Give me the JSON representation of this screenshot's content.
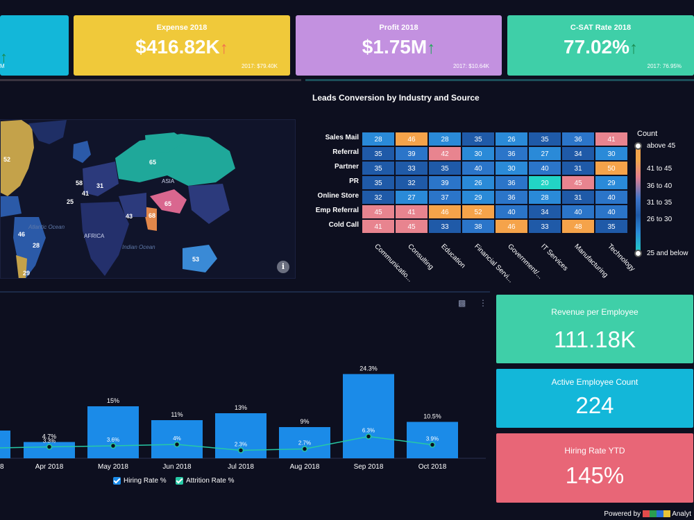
{
  "kpis": [
    {
      "title": "Expense 2018",
      "value": "$416.82K",
      "arrow": "↑",
      "arrow_color": "#f26d4f",
      "prev": "2017: $79.40K",
      "bg": "#f0c93a"
    },
    {
      "title": "Profit 2018",
      "value": "$1.75M",
      "arrow": "↑",
      "arrow_color": "#1fa85a",
      "prev": "2017: $10.64K",
      "bg": "#c391e0"
    },
    {
      "title": "C-SAT Rate 2018",
      "value": "77.02%",
      "arrow": "↑",
      "arrow_color": "#1a8a50",
      "prev": "2017: 76.95%",
      "bg": "#3fcfa8"
    }
  ],
  "left_kpi": {
    "arrow": "↑",
    "prev": "M",
    "bg": "#13b7d9"
  },
  "map": {
    "numbers": [
      "52",
      "65",
      "58",
      "31",
      "25",
      "41",
      "43",
      "65",
      "68",
      "46",
      "28",
      "53",
      "29"
    ],
    "oceans": [
      "Atlantic Ocean",
      "Indian Ocean"
    ],
    "regions": [
      "AFRICA",
      "ASIA"
    ],
    "info_icon": "info-icon"
  },
  "heatmap": {
    "title": "Leads Conversion by Industry and Source",
    "rows": [
      "Sales Mail",
      "Referral",
      "Partner",
      "PR",
      "Online Store",
      "Emp Referral",
      "Cold Call"
    ],
    "columns": [
      "Communicatio...",
      "Consulting",
      "Education",
      "Financial Servi...",
      "Government/...",
      "IT Services",
      "Manufacturing",
      "Technology"
    ],
    "values": [
      [
        28,
        46,
        28,
        35,
        26,
        35,
        36,
        41
      ],
      [
        35,
        39,
        42,
        30,
        36,
        27,
        34,
        30
      ],
      [
        35,
        33,
        35,
        40,
        30,
        40,
        31,
        50
      ],
      [
        35,
        32,
        39,
        26,
        36,
        20,
        45,
        29
      ],
      [
        32,
        27,
        37,
        29,
        36,
        28,
        31,
        40
      ],
      [
        45,
        41,
        46,
        52,
        40,
        34,
        40,
        40
      ],
      [
        41,
        45,
        33,
        38,
        46,
        33,
        48,
        35
      ]
    ],
    "legend_title": "Count",
    "legend_labels": [
      "above 45",
      "41 to 45",
      "36 to 40",
      "31 to 35",
      "26 to 30",
      "25 and below"
    ],
    "colors": {
      "above45": "#f5a34a",
      "41to45": "#e8848f",
      "36to40": "#2b75c9",
      "31to35": "#1f5aa8",
      "26to30": "#2a8ad8",
      "25below": "#22d4c5"
    }
  },
  "side_cards": [
    {
      "title": "Revenue per Employee",
      "value": "111.18K",
      "bg": "#3fcfa8"
    },
    {
      "title": "Active Employee Count",
      "value": "224",
      "bg": "#13b7d9"
    },
    {
      "title": "Hiring Rate YTD",
      "value": "145%",
      "bg": "#e86677"
    }
  ],
  "chart_data": {
    "type": "bar",
    "categories": [
      "Apr 2018",
      "May 2018",
      "Jun 2018",
      "Jul 2018",
      "Aug 2018",
      "Sep 2018",
      "Oct 2018"
    ],
    "series": [
      {
        "name": "Hiring Rate %",
        "type": "bar",
        "values": [
          4.7,
          15,
          11,
          13,
          9,
          24.3,
          10.5
        ],
        "labels": [
          "4.7%",
          "15%",
          "11%",
          "13%",
          "9%",
          "24.3%",
          "10.5%"
        ],
        "color": "#1b8be8"
      },
      {
        "name": "Attrition Rate %",
        "type": "line",
        "values": [
          3.3,
          3.6,
          4,
          2.3,
          2.7,
          6.3,
          3.9
        ],
        "labels": [
          "3.3%",
          "3.6%",
          "4%",
          "2.3%",
          "2.7%",
          "6.3%",
          "3.9%"
        ],
        "color": "#27c9a5"
      }
    ],
    "partial_first_category_label": "8",
    "partial_first_bar_value": 8,
    "ylim": [
      0,
      28
    ]
  },
  "chart_icons": [
    "bar-chart-icon",
    "more-vertical-icon"
  ],
  "powered_by": "Powered by",
  "powered_brand": "Analyt"
}
